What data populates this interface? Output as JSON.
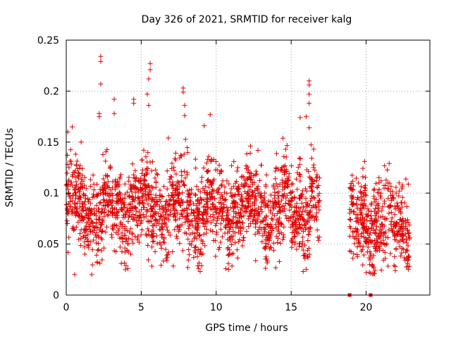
{
  "chart_data": {
    "type": "scatter",
    "title": "Day 326 of 2021, SRMTID for receiver kalg",
    "xlabel": "GPS time / hours",
    "ylabel": "SRMTID / TECUs",
    "xlim": [
      0,
      24.25
    ],
    "ylim": [
      0,
      0.25
    ],
    "x_ticks": [
      0,
      5,
      10,
      15,
      20
    ],
    "x_tick_labels": [
      "0",
      "5",
      "10",
      "15",
      "20"
    ],
    "y_ticks": [
      0,
      0.05,
      0.1,
      0.15,
      0.2,
      0.25
    ],
    "y_tick_labels": [
      "0",
      "0.05",
      "0.1",
      "0.15",
      "0.2",
      "0.25"
    ],
    "grid": true,
    "marker": "+",
    "color": "#e00000",
    "series": [
      {
        "name": "SRMTID",
        "coverage_segments": [
          {
            "x_start": 0.0,
            "x_end": 16.9,
            "typical_min": 0.03,
            "typical_max": 0.13,
            "center": 0.085
          },
          {
            "x_start": 18.9,
            "x_end": 22.9,
            "typical_min": 0.03,
            "typical_max": 0.11,
            "center": 0.07
          }
        ],
        "notable_points": [
          {
            "x": 2.3,
            "y": 0.234
          },
          {
            "x": 2.3,
            "y": 0.229
          },
          {
            "x": 2.3,
            "y": 0.207
          },
          {
            "x": 2.2,
            "y": 0.178
          },
          {
            "x": 2.2,
            "y": 0.175
          },
          {
            "x": 3.2,
            "y": 0.192
          },
          {
            "x": 3.2,
            "y": 0.178
          },
          {
            "x": 4.5,
            "y": 0.192
          },
          {
            "x": 4.5,
            "y": 0.188
          },
          {
            "x": 5.6,
            "y": 0.227
          },
          {
            "x": 5.6,
            "y": 0.221
          },
          {
            "x": 5.5,
            "y": 0.212
          },
          {
            "x": 5.4,
            "y": 0.197
          },
          {
            "x": 5.5,
            "y": 0.186
          },
          {
            "x": 7.8,
            "y": 0.203
          },
          {
            "x": 7.8,
            "y": 0.199
          },
          {
            "x": 7.9,
            "y": 0.186
          },
          {
            "x": 7.9,
            "y": 0.176
          },
          {
            "x": 9.6,
            "y": 0.177
          },
          {
            "x": 9.2,
            "y": 0.166
          },
          {
            "x": 16.2,
            "y": 0.21
          },
          {
            "x": 16.2,
            "y": 0.206
          },
          {
            "x": 16.2,
            "y": 0.197
          },
          {
            "x": 16.2,
            "y": 0.188
          },
          {
            "x": 16.0,
            "y": 0.175
          },
          {
            "x": 15.6,
            "y": 0.174
          },
          {
            "x": 16.2,
            "y": 0.164
          },
          {
            "x": 0.1,
            "y": 0.16
          },
          {
            "x": 0.4,
            "y": 0.165
          },
          {
            "x": 1.7,
            "y": 0.02
          },
          {
            "x": 19.9,
            "y": 0.131
          },
          {
            "x": 21.0,
            "y": 0.112
          },
          {
            "x": 22.2,
            "y": 0.11
          }
        ],
        "zero_points": [
          {
            "x": 18.9,
            "y": 0
          },
          {
            "x": 20.3,
            "y": 0
          }
        ]
      }
    ]
  }
}
